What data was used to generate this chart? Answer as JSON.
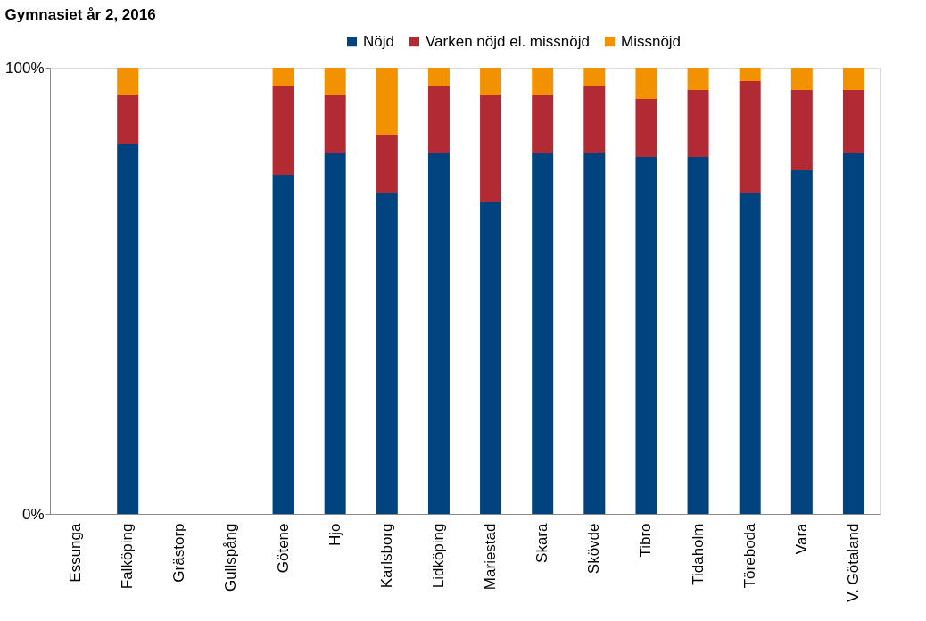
{
  "chart_data": {
    "type": "bar",
    "title": "Gymnasiet år 2, 2016",
    "stacked": true,
    "legend": "top right",
    "grid": false,
    "categories": [
      "Essunga",
      "Falköping",
      "Grästorp",
      "Gullspång",
      "Götene",
      "Hjo",
      "Karlsborg",
      "Lidköping",
      "Mariestad",
      "Skara",
      "Skövde",
      "Tibro",
      "Tidaholm",
      "Töreboda",
      "Vara",
      "V. Götaland"
    ],
    "series": [
      {
        "name": "Nöjd",
        "color": "#00437f",
        "values": [
          null,
          83,
          null,
          null,
          76,
          81,
          72,
          81,
          70,
          81,
          81,
          80,
          80,
          72,
          77,
          81
        ]
      },
      {
        "name": "Varken nöjd el. missnöjd",
        "color": "#b22a33",
        "values": [
          null,
          11,
          null,
          null,
          20,
          13,
          13,
          15,
          24,
          13,
          15,
          13,
          15,
          25,
          18,
          14
        ]
      },
      {
        "name": "Missnöjd",
        "color": "#f39200",
        "values": [
          null,
          6,
          null,
          null,
          4,
          6,
          15,
          4,
          6,
          6,
          4,
          7,
          5,
          3,
          5,
          5
        ]
      }
    ],
    "ylim": [
      0,
      100
    ],
    "yticks": [
      {
        "value": 0,
        "label": "0%"
      },
      {
        "value": 100,
        "label": "100%"
      }
    ]
  }
}
